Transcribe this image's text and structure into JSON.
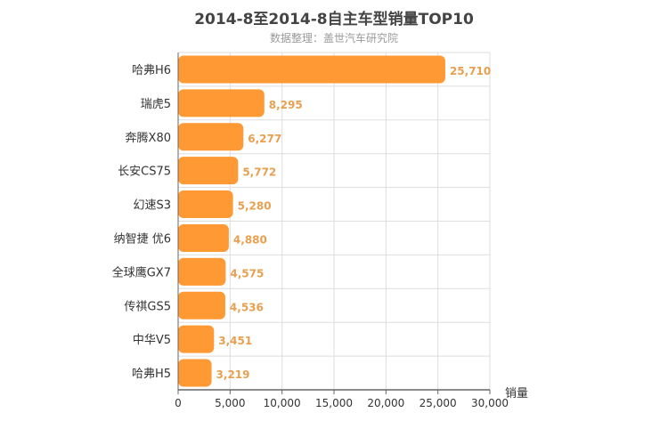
{
  "chart_data": {
    "type": "bar",
    "orientation": "horizontal",
    "title": "2014-8至2014-8自主车型销量TOP10",
    "subtitle": "数据整理：盖世汽车研究院",
    "xlabel": "销量",
    "ylabel": "",
    "categories": [
      "哈弗H6",
      "瑞虎5",
      "奔腾X80",
      "长安CS75",
      "幻速S3",
      "纳智捷 优6",
      "全球鹰GX7",
      "传祺GS5",
      "中华V5",
      "哈弗H5"
    ],
    "values": [
      25710,
      8295,
      6277,
      5772,
      5280,
      4880,
      4575,
      4536,
      3451,
      3219
    ],
    "value_labels": [
      "25,710",
      "8,295",
      "6,277",
      "5,772",
      "5,280",
      "4,880",
      "4,575",
      "4,536",
      "3,451",
      "3,219"
    ],
    "xlim": [
      0,
      30000
    ],
    "xticks": [
      0,
      5000,
      10000,
      15000,
      20000,
      25000,
      30000
    ],
    "xtick_labels": [
      "0",
      "5,000",
      "10,000",
      "15,000",
      "20,000",
      "25,000",
      "30,000"
    ],
    "grid": true,
    "legend": "none",
    "colors": {
      "bar": "#ff9933",
      "value_label": "#e8a050",
      "grid": "#dddddd",
      "axis": "#666666",
      "text": "#333333"
    }
  }
}
